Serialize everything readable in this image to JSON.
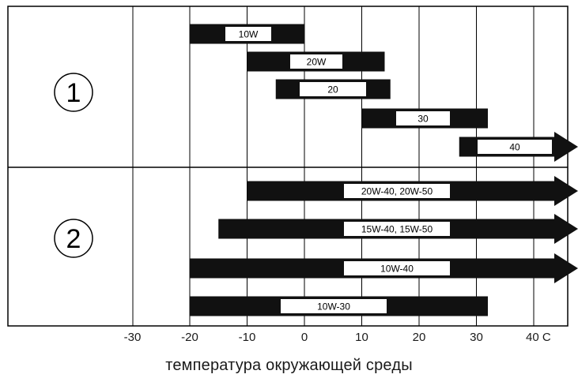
{
  "chart_data": {
    "type": "bar",
    "subtype": "range",
    "x_ticks": [
      "-30",
      "-20",
      "-10",
      "0",
      "10",
      "20",
      "30",
      "40 C"
    ],
    "x_tick_values": [
      -30,
      -20,
      -10,
      0,
      10,
      20,
      30,
      40
    ],
    "xlim": [
      -52,
      46
    ],
    "xlabel": "температура окружающей среды",
    "ylabel": "",
    "title": "",
    "grid": true,
    "groups": [
      {
        "label": "1",
        "bars": [
          {
            "name": "10W",
            "min": -20,
            "max": 0,
            "open_ended": false
          },
          {
            "name": "20W",
            "min": -10,
            "max": 14,
            "open_ended": false
          },
          {
            "name": "20",
            "min": -5,
            "max": 15,
            "open_ended": false
          },
          {
            "name": "30",
            "min": 10,
            "max": 32,
            "open_ended": false
          },
          {
            "name": "40",
            "min": 27,
            "max": 40,
            "open_ended": true
          }
        ]
      },
      {
        "label": "2",
        "bars": [
          {
            "name": "20W-40, 20W-50",
            "min": -10,
            "max": 40,
            "open_ended": true
          },
          {
            "name": "15W-40, 15W-50",
            "min": -15,
            "max": 40,
            "open_ended": true
          },
          {
            "name": "10W-40",
            "min": -20,
            "max": 40,
            "open_ended": true
          },
          {
            "name": "10W-30",
            "min": -20,
            "max": 32,
            "open_ended": false
          }
        ]
      }
    ]
  },
  "colors": {
    "bar_fill": "#111111",
    "label_box": "#ffffff",
    "grid": "#000000",
    "background": "#ffffff"
  }
}
